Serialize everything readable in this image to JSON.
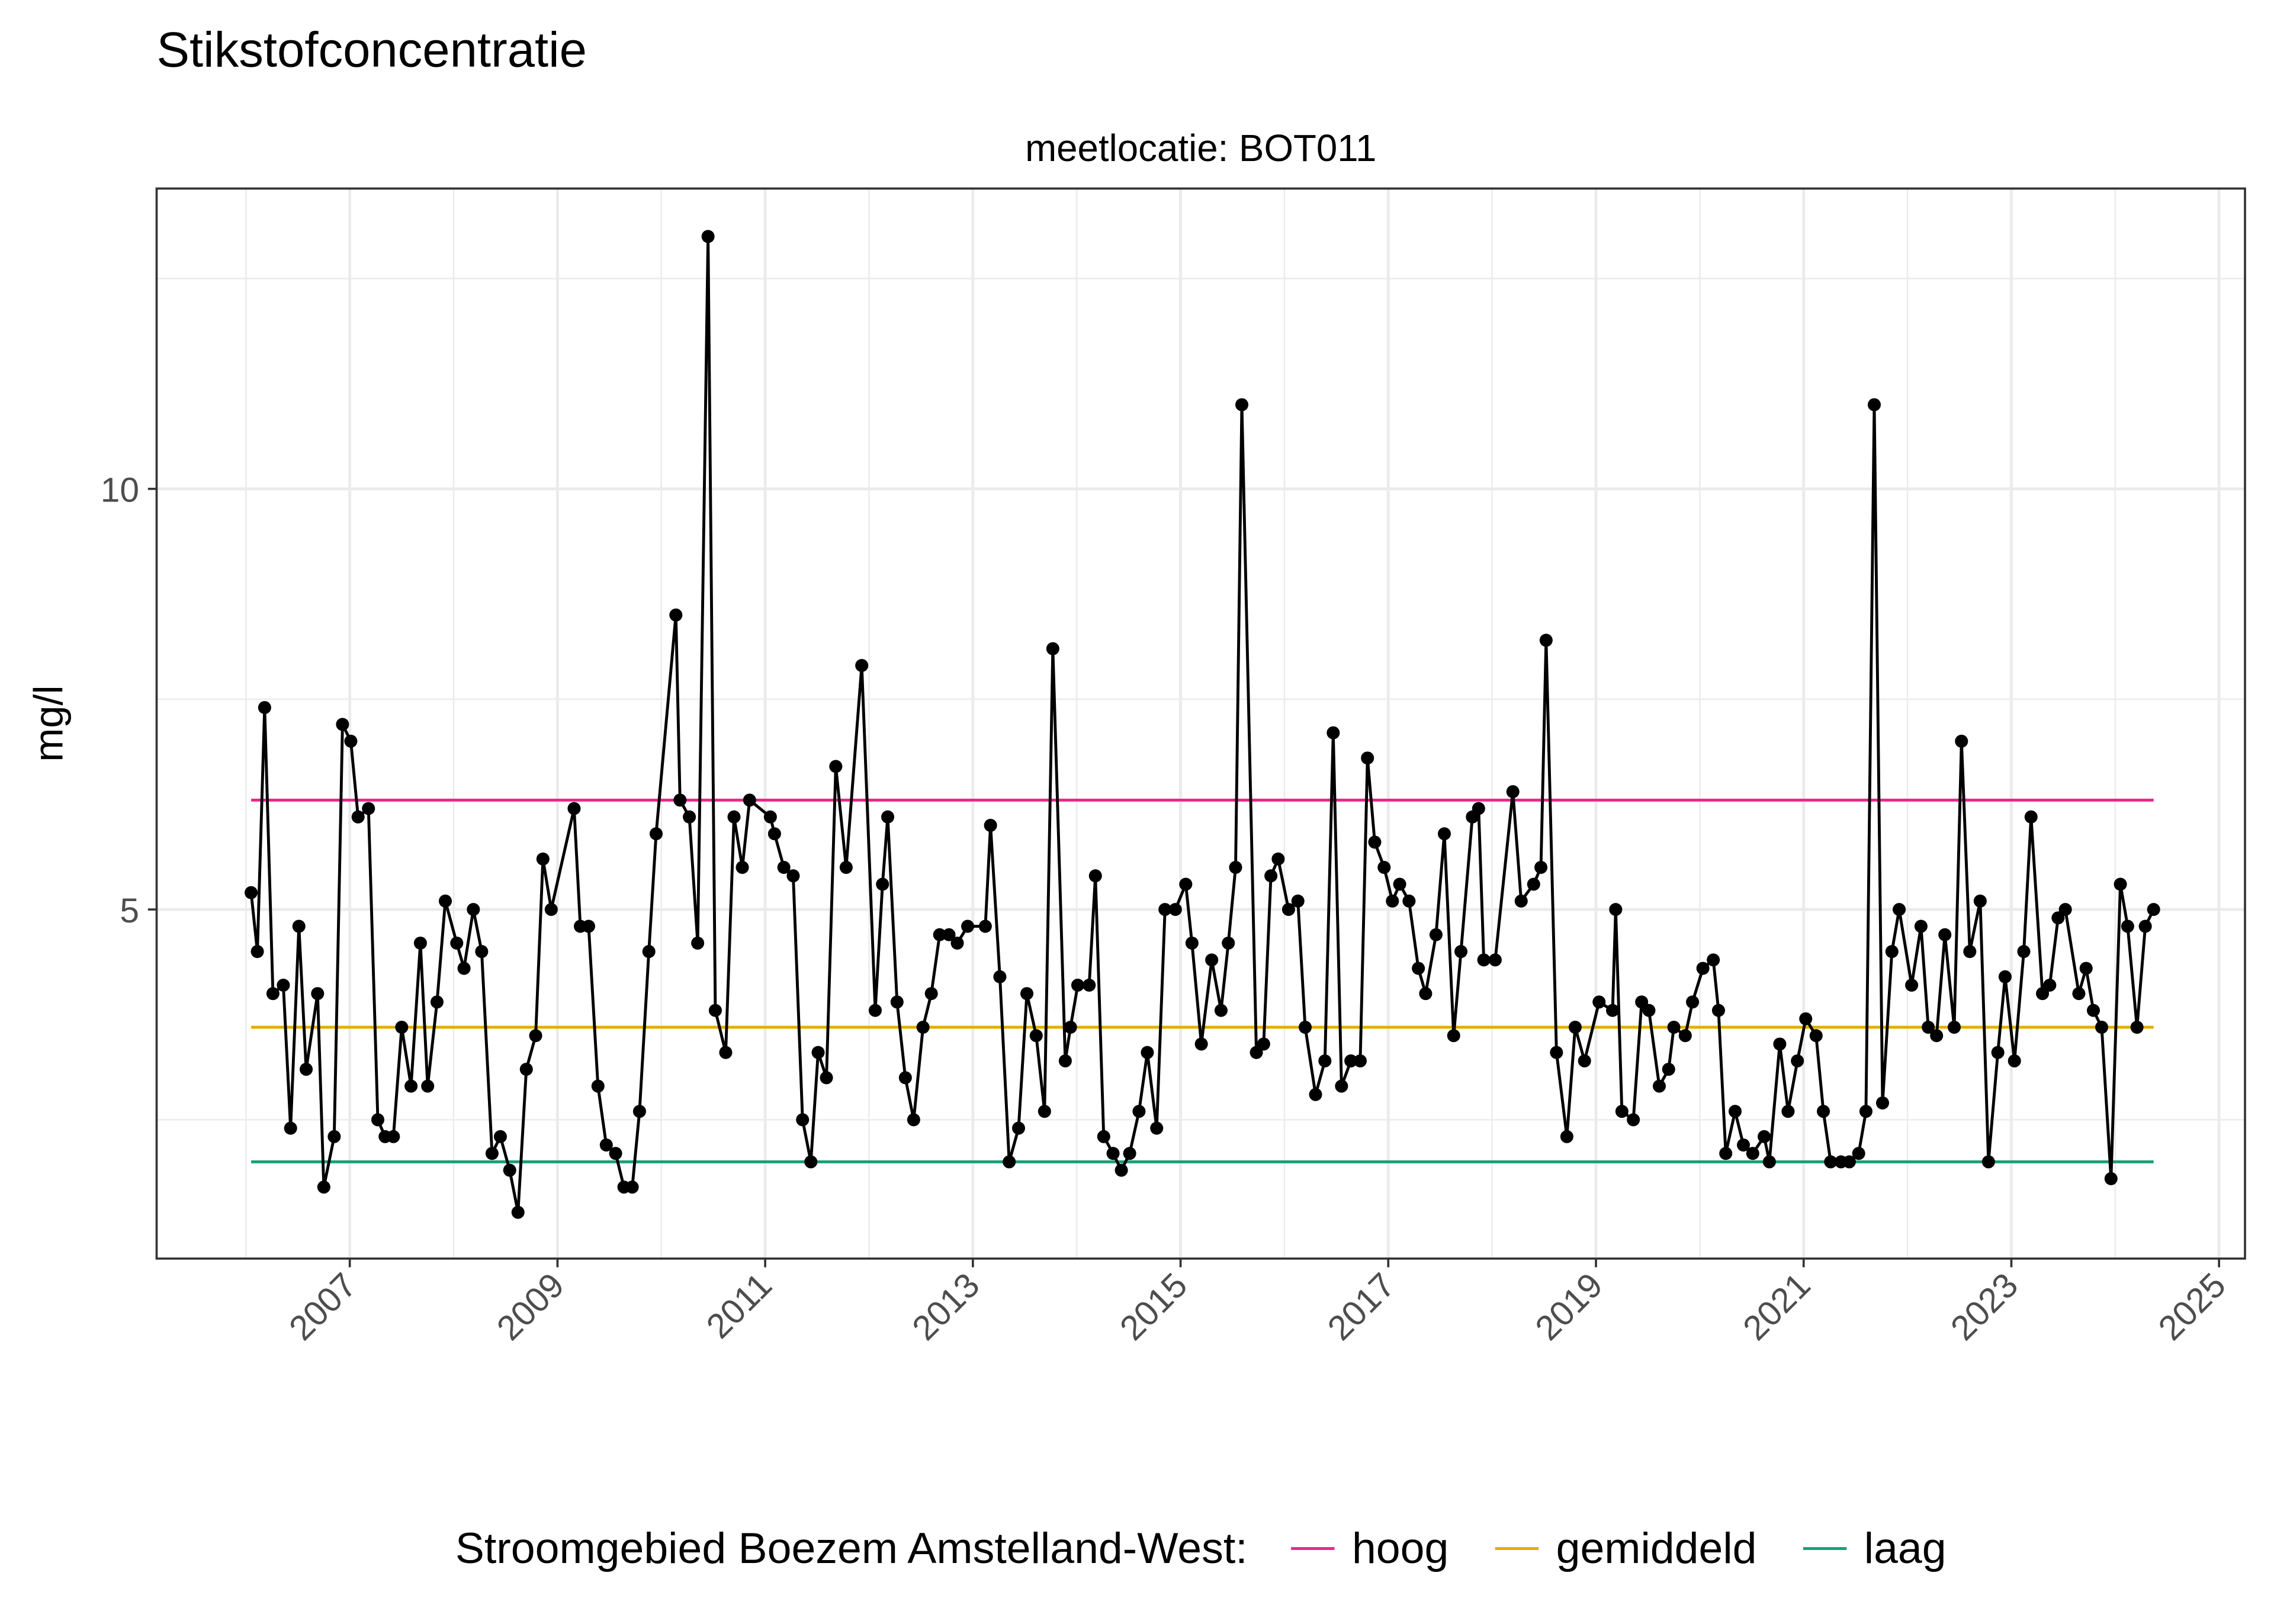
{
  "chart_data": {
    "type": "line",
    "title": "Stikstofconcentratie",
    "subtitle": "meetlocatie: BOT011",
    "ylabel": "mg/l",
    "legend_title": "Stroomgebied Boezem Amstelland-West:",
    "legend_position": "bottom",
    "grid": true,
    "xlim": [
      2005.14,
      2025.25
    ],
    "ylim": [
      0.85,
      13.57
    ],
    "xticks": [
      2007,
      2009,
      2011,
      2013,
      2015,
      2017,
      2019,
      2021,
      2023,
      2025
    ],
    "xminor": [
      2006,
      2008,
      2010,
      2012,
      2014,
      2016,
      2018,
      2020,
      2022,
      2024
    ],
    "yticks": [
      5,
      10
    ],
    "yminor": [
      2.5,
      7.5,
      12.5
    ],
    "reference_lines": [
      {
        "name": "hoog",
        "color": "#e7298a",
        "value": 6.3
      },
      {
        "name": "gemiddeld",
        "color": "#e6ab02",
        "value": 3.6
      },
      {
        "name": "laag",
        "color": "#1b9e77",
        "value": 2.0
      }
    ],
    "x": [
      2006.05,
      2006.11,
      2006.18,
      2006.26,
      2006.36,
      2006.43,
      2006.51,
      2006.58,
      2006.69,
      2006.75,
      2006.85,
      2006.93,
      2007.01,
      2007.08,
      2007.18,
      2007.27,
      2007.34,
      2007.42,
      2007.5,
      2007.59,
      2007.68,
      2007.75,
      2007.84,
      2007.92,
      2008.03,
      2008.1,
      2008.19,
      2008.27,
      2008.37,
      2008.45,
      2008.54,
      2008.62,
      2008.7,
      2008.79,
      2008.86,
      2008.94,
      2009.16,
      2009.22,
      2009.3,
      2009.39,
      2009.47,
      2009.56,
      2009.64,
      2009.72,
      2009.79,
      2009.88,
      2009.95,
      2010.14,
      2010.18,
      2010.27,
      2010.35,
      2010.45,
      2010.52,
      2010.62,
      2010.7,
      2010.78,
      2010.85,
      2011.05,
      2011.09,
      2011.18,
      2011.27,
      2011.36,
      2011.44,
      2011.51,
      2011.59,
      2011.68,
      2011.78,
      2011.93,
      2012.06,
      2012.13,
      2012.18,
      2012.27,
      2012.35,
      2012.43,
      2012.52,
      2012.6,
      2012.68,
      2012.77,
      2012.85,
      2012.95,
      2013.12,
      2013.17,
      2013.26,
      2013.35,
      2013.44,
      2013.52,
      2013.61,
      2013.69,
      2013.77,
      2013.89,
      2013.94,
      2014.01,
      2014.12,
      2014.18,
      2014.26,
      2014.35,
      2014.43,
      2014.51,
      2014.6,
      2014.68,
      2014.77,
      2014.85,
      2014.95,
      2015.05,
      2015.11,
      2015.2,
      2015.3,
      2015.39,
      2015.46,
      2015.53,
      2015.59,
      2015.73,
      2015.8,
      2015.87,
      2015.94,
      2016.04,
      2016.13,
      2016.2,
      2016.3,
      2016.39,
      2016.47,
      2016.55,
      2016.64,
      2016.73,
      2016.8,
      2016.87,
      2016.96,
      2017.04,
      2017.11,
      2017.2,
      2017.29,
      2017.36,
      2017.46,
      2017.54,
      2017.63,
      2017.7,
      2017.81,
      2017.87,
      2017.92,
      2018.03,
      2018.2,
      2018.28,
      2018.4,
      2018.47,
      2018.52,
      2018.62,
      2018.72,
      2018.8,
      2018.89,
      2019.03,
      2019.16,
      2019.19,
      2019.25,
      2019.36,
      2019.44,
      2019.51,
      2019.61,
      2019.7,
      2019.75,
      2019.86,
      2019.93,
      2020.03,
      2020.13,
      2020.18,
      2020.25,
      2020.34,
      2020.42,
      2020.51,
      2020.62,
      2020.67,
      2020.77,
      2020.85,
      2020.94,
      2021.02,
      2021.12,
      2021.19,
      2021.26,
      2021.36,
      2021.44,
      2021.53,
      2021.6,
      2021.68,
      2021.76,
      2021.85,
      2021.92,
      2022.04,
      2022.13,
      2022.2,
      2022.28,
      2022.36,
      2022.45,
      2022.52,
      2022.6,
      2022.7,
      2022.78,
      2022.87,
      2022.94,
      2023.03,
      2023.12,
      2023.19,
      2023.3,
      2023.37,
      2023.45,
      2023.52,
      2023.65,
      2023.72,
      2023.79,
      2023.87,
      2023.96,
      2024.05,
      2024.12,
      2024.21,
      2024.29,
      2024.37
    ],
    "series": [
      {
        "color": "#000000",
        "values": [
          5.2,
          4.5,
          7.4,
          4.0,
          4.1,
          2.4,
          4.8,
          3.1,
          4.0,
          1.7,
          2.3,
          7.2,
          7.0,
          6.1,
          6.2,
          2.5,
          2.3,
          2.3,
          3.6,
          2.9,
          4.6,
          2.9,
          3.9,
          5.1,
          4.6,
          4.3,
          5.0,
          4.5,
          2.1,
          2.3,
          1.9,
          1.4,
          3.1,
          3.5,
          5.6,
          5.0,
          6.2,
          4.8,
          4.8,
          2.9,
          2.2,
          2.1,
          1.7,
          1.7,
          2.6,
          4.5,
          5.9,
          8.5,
          6.3,
          6.1,
          4.6,
          13.0,
          3.8,
          3.3,
          6.1,
          5.5,
          6.3,
          6.1,
          5.9,
          5.5,
          5.4,
          2.5,
          2.0,
          3.3,
          3.0,
          6.7,
          5.5,
          7.9,
          3.8,
          5.3,
          6.1,
          3.9,
          3.0,
          2.5,
          3.6,
          4.0,
          4.7,
          4.7,
          4.6,
          4.8,
          4.8,
          6.0,
          4.2,
          2.0,
          2.4,
          4.0,
          3.5,
          2.6,
          8.1,
          3.2,
          3.6,
          4.1,
          4.1,
          5.4,
          2.3,
          2.1,
          1.9,
          2.1,
          2.6,
          3.3,
          2.4,
          5.0,
          5.0,
          5.3,
          4.6,
          3.4,
          4.4,
          3.8,
          4.6,
          5.5,
          11.0,
          3.3,
          3.4,
          5.4,
          5.6,
          5.0,
          5.1,
          3.6,
          2.8,
          3.2,
          7.1,
          2.9,
          3.2,
          3.2,
          6.8,
          5.8,
          5.5,
          5.1,
          5.3,
          5.1,
          4.3,
          4.0,
          4.7,
          5.9,
          3.5,
          4.5,
          6.1,
          6.2,
          4.4,
          4.4,
          6.4,
          5.1,
          5.3,
          5.5,
          8.2,
          3.3,
          2.3,
          3.6,
          3.2,
          3.9,
          3.8,
          5.0,
          2.6,
          2.5,
          3.9,
          3.8,
          2.9,
          3.1,
          3.6,
          3.5,
          3.9,
          4.3,
          4.4,
          3.8,
          2.1,
          2.6,
          2.2,
          2.1,
          2.3,
          2.0,
          3.4,
          2.6,
          3.2,
          3.7,
          3.5,
          2.6,
          2.0,
          2.0,
          2.0,
          2.1,
          2.6,
          11.0,
          2.7,
          4.5,
          5.0,
          4.1,
          4.8,
          3.6,
          3.5,
          4.7,
          3.6,
          7.0,
          4.5,
          5.1,
          2.0,
          3.3,
          4.2,
          3.2,
          4.5,
          6.1,
          4.0,
          4.1,
          4.9,
          5.0,
          4.0,
          4.3,
          3.8,
          3.6,
          1.8,
          5.3,
          4.8,
          3.6,
          4.8,
          5.0
        ]
      }
    ]
  }
}
